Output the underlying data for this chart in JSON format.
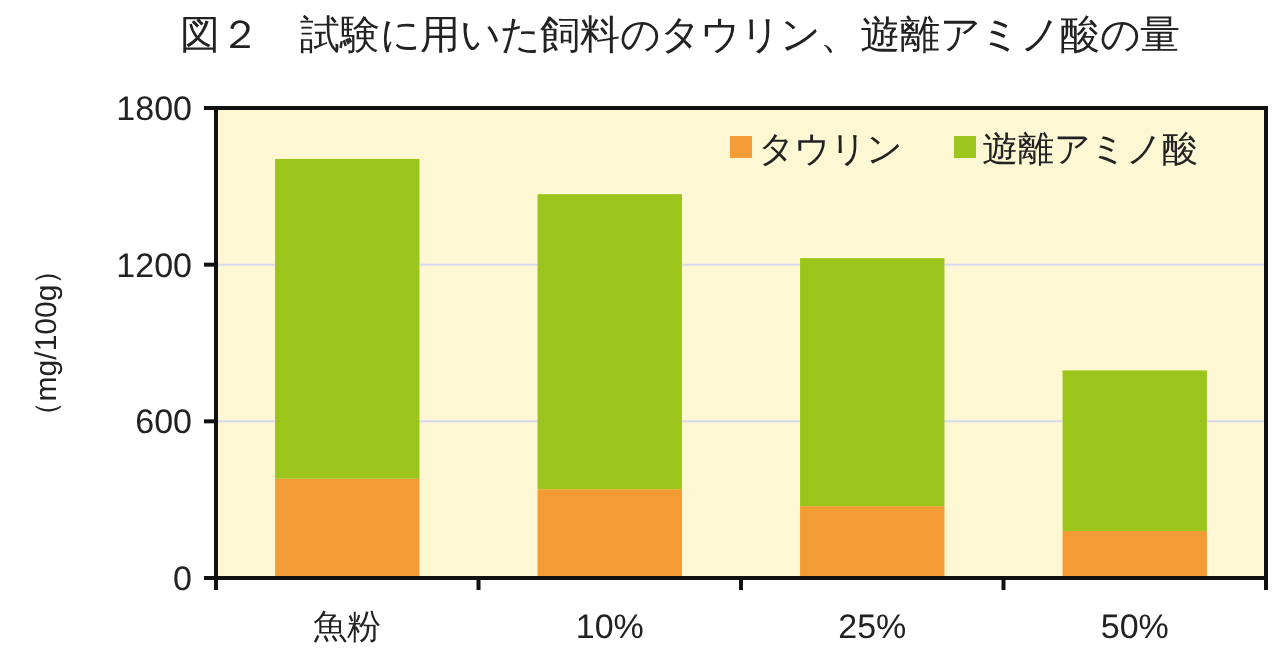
{
  "chart_data": {
    "type": "bar",
    "title": "図２　試験に用いた飼料のタウリン、遊離アミノ酸の量",
    "ylabel": "（mg/100g）",
    "categories": [
      "魚粉",
      "10%",
      "25%",
      "50%"
    ],
    "series": [
      {
        "name": "タウリン",
        "color": "#f39c35",
        "values": [
          380,
          340,
          275,
          180
        ]
      },
      {
        "name": "遊離アミノ酸",
        "color": "#9bc51b",
        "values": [
          1225,
          1130,
          950,
          615
        ]
      }
    ],
    "stacked": true,
    "ylim": [
      0,
      1800
    ],
    "yticks": [
      0,
      600,
      1200,
      1800
    ],
    "grid": "y",
    "legend": "top right"
  }
}
